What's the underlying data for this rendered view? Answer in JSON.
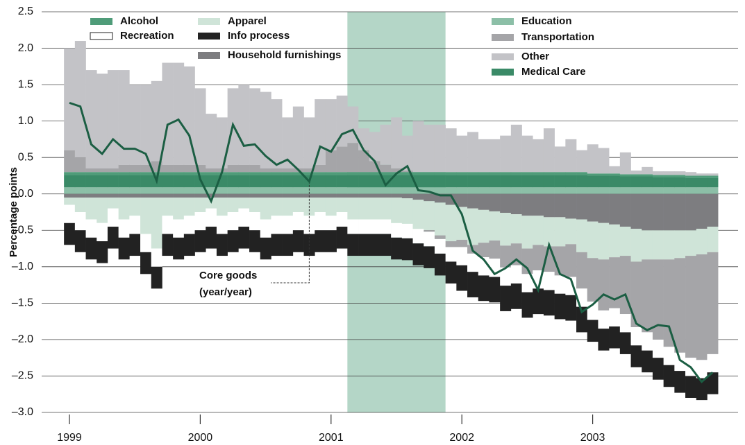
{
  "chart_data": {
    "type": "bar",
    "y_label": "Percentage points",
    "categories": [
      "1999",
      null,
      null,
      null,
      null,
      null,
      null,
      null,
      null,
      null,
      null,
      null,
      "2000",
      null,
      null,
      null,
      null,
      null,
      null,
      null,
      null,
      null,
      null,
      null,
      "2001",
      null,
      null,
      null,
      null,
      null,
      null,
      null,
      null,
      null,
      null,
      null,
      "2002",
      null,
      null,
      null,
      null,
      null,
      null,
      null,
      null,
      null,
      null,
      null,
      "2003",
      null,
      null,
      null,
      null,
      null,
      null,
      null,
      null,
      null,
      null,
      null
    ],
    "ylim": [
      -3.0,
      2.5
    ],
    "yticks": [
      {
        "value": 2.5,
        "label": "2.5"
      },
      {
        "value": 2,
        "label": "2.0"
      },
      {
        "value": 1.5,
        "label": "1.5"
      },
      {
        "value": 1,
        "label": "1.0"
      },
      {
        "value": 0.5,
        "label": "0.5"
      },
      {
        "value": 0,
        "label": "0.0"
      },
      {
        "value": -0.5,
        "label": "–0.5"
      },
      {
        "value": -1,
        "label": "–1.0"
      },
      {
        "value": -1.5,
        "label": "–1.5"
      },
      {
        "value": -2,
        "label": "–2.0"
      },
      {
        "value": -2.5,
        "label": "–2.5"
      },
      {
        "value": -3,
        "label": "–3.0"
      }
    ],
    "grid": true,
    "stacked": true,
    "recession_band": {
      "start": 26,
      "end": 34,
      "color": "#b4d6c7"
    },
    "series": [
      {
        "name": "Education",
        "color": "#8cbfa7",
        "values": [
          0.09,
          0.09,
          0.09,
          0.09,
          0.09,
          0.09,
          0.09,
          0.09,
          0.09,
          0.09,
          0.09,
          0.09,
          0.09,
          0.09,
          0.09,
          0.09,
          0.09,
          0.09,
          0.09,
          0.09,
          0.09,
          0.09,
          0.09,
          0.09,
          0.09,
          0.09,
          0.09,
          0.09,
          0.09,
          0.09,
          0.09,
          0.09,
          0.09,
          0.09,
          0.09,
          0.09,
          0.09,
          0.09,
          0.09,
          0.09,
          0.09,
          0.09,
          0.09,
          0.09,
          0.09,
          0.09,
          0.09,
          0.09,
          0.09,
          0.09,
          0.09,
          0.09,
          0.09,
          0.09,
          0.09,
          0.09,
          0.09,
          0.09,
          0.09,
          0.09
        ]
      },
      {
        "name": "Medical Care",
        "color": "#3a8a67",
        "values": [
          0.17,
          0.17,
          0.17,
          0.17,
          0.17,
          0.17,
          0.17,
          0.17,
          0.17,
          0.17,
          0.17,
          0.17,
          0.17,
          0.17,
          0.17,
          0.17,
          0.17,
          0.17,
          0.17,
          0.17,
          0.17,
          0.17,
          0.17,
          0.17,
          0.17,
          0.17,
          0.17,
          0.17,
          0.17,
          0.17,
          0.17,
          0.17,
          0.17,
          0.17,
          0.17,
          0.17,
          0.17,
          0.17,
          0.17,
          0.17,
          0.17,
          0.17,
          0.17,
          0.17,
          0.17,
          0.17,
          0.17,
          0.17,
          0.16,
          0.16,
          0.16,
          0.15,
          0.15,
          0.15,
          0.14,
          0.14,
          0.14,
          0.13,
          0.13,
          0.13
        ]
      },
      {
        "name": "Alcohol",
        "color": "#4f9c79",
        "values": [
          0.04,
          0.04,
          0.04,
          0.04,
          0.04,
          0.04,
          0.04,
          0.04,
          0.04,
          0.04,
          0.04,
          0.04,
          0.04,
          0.04,
          0.04,
          0.04,
          0.04,
          0.04,
          0.04,
          0.04,
          0.04,
          0.04,
          0.04,
          0.04,
          0.04,
          0.04,
          0.04,
          0.04,
          0.04,
          0.04,
          0.04,
          0.04,
          0.04,
          0.04,
          0.04,
          0.04,
          0.04,
          0.04,
          0.04,
          0.04,
          0.04,
          0.04,
          0.04,
          0.04,
          0.04,
          0.04,
          0.04,
          0.04,
          0.03,
          0.03,
          0.03,
          0.03,
          0.03,
          0.03,
          0.03,
          0.03,
          0.03,
          0.03,
          0.03,
          0.03
        ]
      },
      {
        "name": "Household furnishings",
        "color": "#7d7d80",
        "values": [
          -0.05,
          -0.05,
          -0.05,
          -0.05,
          -0.05,
          -0.05,
          -0.05,
          -0.05,
          -0.05,
          -0.05,
          -0.05,
          -0.05,
          -0.05,
          -0.05,
          -0.05,
          -0.05,
          -0.05,
          -0.05,
          -0.05,
          -0.05,
          -0.05,
          -0.05,
          -0.05,
          -0.05,
          -0.05,
          -0.05,
          -0.05,
          -0.05,
          -0.05,
          -0.05,
          -0.05,
          -0.06,
          -0.08,
          -0.1,
          -0.12,
          -0.15,
          -0.18,
          -0.2,
          -0.22,
          -0.24,
          -0.26,
          -0.28,
          -0.3,
          -0.3,
          -0.32,
          -0.32,
          -0.34,
          -0.35,
          -0.38,
          -0.4,
          -0.42,
          -0.45,
          -0.48,
          -0.5,
          -0.5,
          -0.5,
          -0.5,
          -0.5,
          -0.48,
          -0.45
        ]
      },
      {
        "name": "Apparel",
        "color": "#cfe4d8",
        "values": [
          -0.1,
          -0.2,
          -0.3,
          -0.35,
          -0.15,
          -0.3,
          -0.25,
          -0.5,
          -0.7,
          -0.25,
          -0.3,
          -0.25,
          -0.2,
          -0.15,
          -0.25,
          -0.2,
          -0.15,
          -0.2,
          -0.3,
          -0.25,
          -0.25,
          -0.2,
          -0.25,
          -0.2,
          -0.25,
          -0.2,
          -0.3,
          -0.3,
          -0.3,
          -0.3,
          -0.35,
          -0.35,
          -0.4,
          -0.4,
          -0.45,
          -0.5,
          -0.45,
          -0.5,
          -0.45,
          -0.4,
          -0.45,
          -0.4,
          -0.45,
          -0.4,
          -0.4,
          -0.4,
          -0.35,
          -0.45,
          -0.5,
          -0.5,
          -0.45,
          -0.4,
          -0.45,
          -0.4,
          -0.4,
          -0.4,
          -0.38,
          -0.35,
          -0.35,
          -0.35
        ]
      },
      {
        "name": "Transportation",
        "color": "#a5a5a8",
        "values": [
          0.3,
          0.2,
          0.05,
          0.05,
          0.05,
          0.1,
          0.1,
          0.1,
          0.15,
          0.1,
          0.1,
          0.1,
          0.1,
          0.05,
          0.05,
          0.1,
          0.1,
          0.1,
          0.05,
          0.05,
          0.05,
          0.05,
          0.05,
          0.1,
          0.3,
          0.35,
          0.4,
          0.3,
          0.15,
          0.1,
          0.05,
          0.02,
          0,
          -0.02,
          -0.05,
          -0.08,
          -0.1,
          -0.12,
          -0.2,
          -0.25,
          -0.3,
          -0.3,
          -0.35,
          -0.35,
          -0.35,
          -0.4,
          -0.45,
          -0.5,
          -0.6,
          -0.7,
          -0.7,
          -0.8,
          -0.9,
          -1.0,
          -1.1,
          -1.2,
          -1.3,
          -1.4,
          -1.45,
          -1.4
        ]
      },
      {
        "name": "Other",
        "color": "#c3c3c7",
        "values": [
          1.4,
          1.6,
          1.35,
          1.3,
          1.35,
          1.3,
          1.1,
          1.1,
          1.1,
          1.4,
          1.4,
          1.35,
          1.05,
          0.75,
          0.7,
          1.05,
          1.1,
          1.05,
          1.05,
          0.95,
          0.7,
          0.85,
          0.7,
          0.9,
          0.7,
          0.7,
          0.5,
          0.3,
          0.4,
          0.55,
          0.7,
          0.48,
          0.7,
          0.65,
          0.65,
          0.6,
          0.5,
          0.55,
          0.45,
          0.45,
          0.5,
          0.65,
          0.5,
          0.45,
          0.6,
          0.35,
          0.45,
          0.3,
          0.4,
          0.35,
          0.1,
          0.3,
          0.05,
          0.1,
          0.05,
          0.05,
          0.05,
          0.05,
          0.03,
          0.03
        ]
      },
      {
        "name": "Recreation",
        "color": "#ffffff",
        "values": [
          -0.25,
          -0.25,
          -0.25,
          -0.25,
          -0.25,
          -0.25,
          -0.25,
          -0.25,
          -0.25,
          -0.25,
          -0.25,
          -0.25,
          -0.25,
          -0.25,
          -0.25,
          -0.25,
          -0.25,
          -0.25,
          -0.25,
          -0.25,
          -0.25,
          -0.25,
          -0.25,
          -0.25,
          -0.2,
          -0.2,
          -0.2,
          -0.2,
          -0.2,
          -0.2,
          -0.2,
          -0.2,
          -0.2,
          -0.2,
          -0.2,
          -0.2,
          -0.25,
          -0.25,
          -0.25,
          -0.25,
          -0.25,
          -0.25,
          -0.25,
          -0.25,
          -0.25,
          -0.25,
          -0.25,
          -0.25,
          -0.25,
          -0.25,
          -0.25,
          -0.25,
          -0.25,
          -0.25,
          -0.25,
          -0.25,
          -0.25,
          -0.25,
          -0.25,
          -0.25
        ]
      },
      {
        "name": "Info process",
        "color": "#222222",
        "values": [
          -0.3,
          -0.3,
          -0.3,
          -0.3,
          -0.3,
          -0.3,
          -0.3,
          -0.3,
          -0.3,
          -0.3,
          -0.3,
          -0.3,
          -0.3,
          -0.3,
          -0.3,
          -0.3,
          -0.3,
          -0.3,
          -0.3,
          -0.3,
          -0.3,
          -0.3,
          -0.3,
          -0.3,
          -0.3,
          -0.3,
          -0.3,
          -0.3,
          -0.3,
          -0.3,
          -0.3,
          -0.3,
          -0.3,
          -0.3,
          -0.3,
          -0.3,
          -0.35,
          -0.35,
          -0.35,
          -0.35,
          -0.35,
          -0.35,
          -0.35,
          -0.35,
          -0.35,
          -0.35,
          -0.35,
          -0.35,
          -0.3,
          -0.3,
          -0.3,
          -0.3,
          -0.3,
          -0.3,
          -0.3,
          -0.3,
          -0.3,
          -0.3,
          -0.3,
          -0.3
        ]
      }
    ],
    "line": {
      "color": "#1b5e43",
      "values": [
        1.25,
        1.2,
        0.68,
        0.55,
        0.75,
        0.62,
        0.62,
        0.55,
        0.18,
        0.95,
        1.02,
        0.8,
        0.2,
        -0.1,
        0.3,
        0.95,
        0.66,
        0.68,
        0.52,
        0.4,
        0.47,
        0.33,
        0.17,
        0.65,
        0.58,
        0.82,
        0.88,
        0.6,
        0.45,
        0.12,
        0.28,
        0.38,
        0.05,
        0.03,
        -0.02,
        -0.02,
        -0.28,
        -0.78,
        -0.9,
        -1.1,
        -1.02,
        -0.9,
        -1.02,
        -1.32,
        -0.7,
        -1.1,
        -1.17,
        -1.62,
        -1.52,
        -1.38,
        -1.45,
        -1.38,
        -1.78,
        -1.87,
        -1.8,
        -1.82,
        -2.28,
        -2.38,
        -2.58,
        -2.45
      ]
    },
    "annotation": {
      "lines": [
        "Core goods",
        "(year/year)"
      ],
      "index": 22
    }
  }
}
